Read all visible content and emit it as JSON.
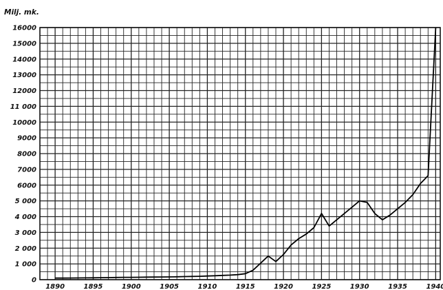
{
  "chart_data": {
    "type": "line",
    "ylabel": "Milj. mk.",
    "xlabel": "",
    "title": "",
    "ylim": [
      0,
      16000
    ],
    "xlim": [
      1888,
      1940.6
    ],
    "grid": true,
    "ytick_labels": [
      "0",
      "1 000",
      "2 000",
      "3 000",
      "4 000",
      "5 000",
      "6000",
      "7000",
      "8000",
      "9000",
      "10000",
      "11 000",
      "12000",
      "13000",
      "14000",
      "15000",
      "16000"
    ],
    "xtick_labels": [
      "1890",
      "1895",
      "1900",
      "1905",
      "1910",
      "1915",
      "1920",
      "1925",
      "1930",
      "1935",
      "1940"
    ],
    "x": [
      1890,
      1891,
      1892,
      1893,
      1894,
      1895,
      1896,
      1897,
      1898,
      1899,
      1900,
      1901,
      1902,
      1903,
      1904,
      1905,
      1906,
      1907,
      1908,
      1909,
      1910,
      1911,
      1912,
      1913,
      1914,
      1915,
      1916,
      1917,
      1918,
      1919,
      1920,
      1921,
      1922,
      1923,
      1924,
      1925,
      1926,
      1927,
      1928,
      1929,
      1930,
      1931,
      1932,
      1933,
      1934,
      1935,
      1936,
      1937,
      1938,
      1939,
      1940
    ],
    "values": [
      100,
      100,
      105,
      110,
      115,
      120,
      125,
      130,
      140,
      150,
      150,
      155,
      160,
      165,
      170,
      175,
      185,
      195,
      205,
      215,
      230,
      250,
      270,
      290,
      320,
      380,
      600,
      1050,
      1500,
      1150,
      1600,
      2200,
      2600,
      2900,
      3300,
      4200,
      3400,
      3800,
      4200,
      4600,
      5000,
      4900,
      4200,
      3800,
      4100,
      4500,
      4900,
      5400,
      6100,
      6600,
      16000
    ]
  }
}
